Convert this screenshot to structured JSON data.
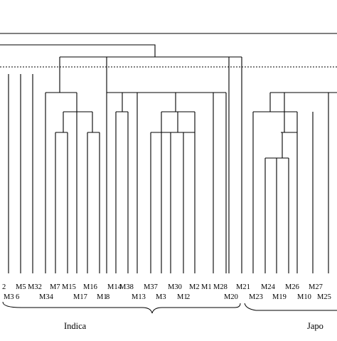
{
  "diagram": {
    "type": "dendrogram",
    "top_row_labels": [
      "2",
      "M5",
      "M32",
      "M7",
      "M15",
      "M16",
      "M14",
      "M38",
      "M37",
      "M30",
      "M2",
      "M1",
      "M28",
      "M21",
      "M24",
      "M26",
      "M27"
    ],
    "bottom_row_labels": [
      "M3",
      "6",
      "M34",
      "M17",
      "M1",
      "8",
      "M13",
      "M3",
      "M1",
      "2",
      "M20",
      "M23",
      "M19",
      "M10",
      "M25"
    ],
    "groups": [
      "Indica",
      "Japo"
    ]
  }
}
